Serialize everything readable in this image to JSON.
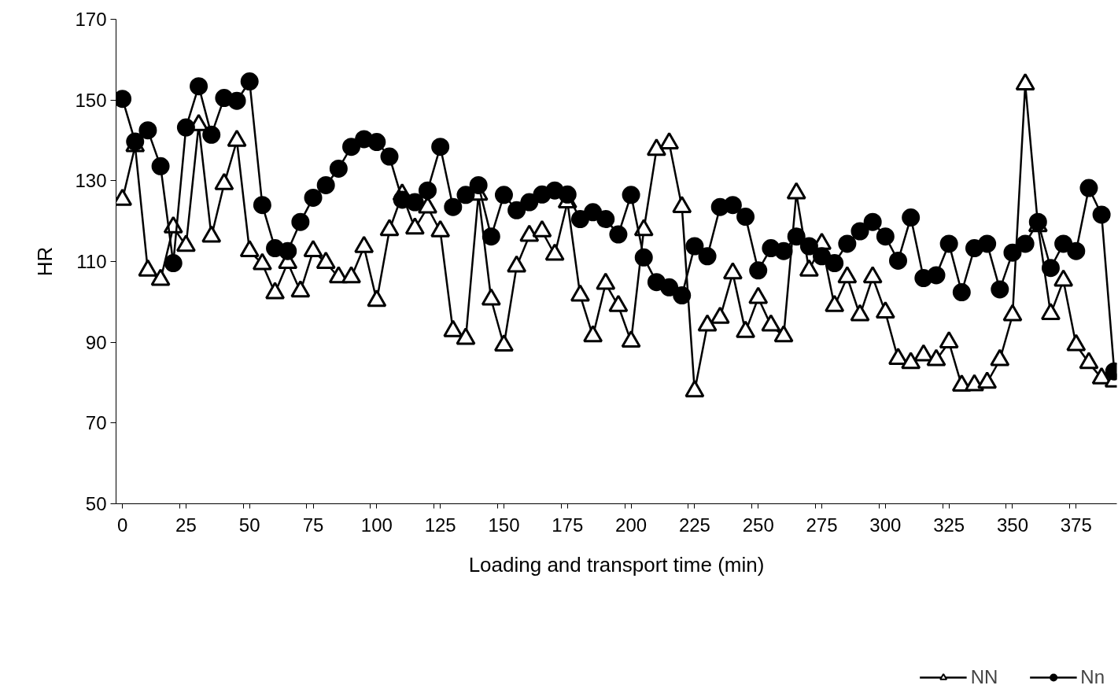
{
  "chart_data": {
    "type": "line",
    "xlabel": "Loading and transport time (min)",
    "ylabel": "HR",
    "x": [
      0,
      5,
      10,
      15,
      20,
      25,
      30,
      35,
      40,
      45,
      50,
      55,
      60,
      65,
      70,
      75,
      80,
      85,
      90,
      95,
      100,
      105,
      110,
      115,
      120,
      125,
      130,
      135,
      140,
      145,
      150,
      155,
      160,
      165,
      170,
      175,
      180,
      185,
      190,
      195,
      200,
      205,
      210,
      215,
      220,
      225,
      230,
      235,
      240,
      245,
      250,
      255,
      260,
      265,
      270,
      275,
      280,
      285,
      290,
      295,
      300,
      305,
      310,
      315,
      320,
      325,
      330,
      335,
      340,
      345,
      350,
      355,
      360,
      365,
      370,
      375,
      380,
      385,
      390
    ],
    "series": [
      {
        "name": "NN",
        "color": "#000000",
        "marker": "triangle",
        "values": [
          125.3,
          138.6,
          107.8,
          105.5,
          118.5,
          113.9,
          143.8,
          116.2,
          129.2,
          139.9,
          112.6,
          109.4,
          102.2,
          109.7,
          102.6,
          112.6,
          109.7,
          106.1,
          106.1,
          113.6,
          100.3,
          117.8,
          126.6,
          118.2,
          123.4,
          117.5,
          92.8,
          90.9,
          126.6,
          100.6,
          89.2,
          108.8,
          116.4,
          117.5,
          111.7,
          124.7,
          101.6,
          91.5,
          104.5,
          99.0,
          90.2,
          117.8,
          137.7,
          139.3,
          123.5,
          77.9,
          94.2,
          96.1,
          107.1,
          92.6,
          101.0,
          94.2,
          91.5,
          126.9,
          107.8,
          114.4,
          99.0,
          106.1,
          96.7,
          106.1,
          97.4,
          85.9,
          84.9,
          86.8,
          85.6,
          90.0,
          79.3,
          79.4,
          80.0,
          85.6,
          96.7,
          153.9,
          118.8,
          97.0,
          105.3,
          89.3,
          84.9,
          81.1,
          80.3
        ]
      },
      {
        "name": "Nn",
        "color": "#000000",
        "marker": "circle",
        "values": [
          150.3,
          139.7,
          142.5,
          133.6,
          109.6,
          143.2,
          153.4,
          141.4,
          150.5,
          149.8,
          154.6,
          124.0,
          113.3,
          112.6,
          119.8,
          125.8,
          128.9,
          133.0,
          138.4,
          140.3,
          139.6,
          136.0,
          125.3,
          124.7,
          127.6,
          138.4,
          123.5,
          126.5,
          128.9,
          116.2,
          126.5,
          122.7,
          124.7,
          126.6,
          127.6,
          126.6,
          120.5,
          122.2,
          120.5,
          116.7,
          126.5,
          111.0,
          104.9,
          103.6,
          101.6,
          113.8,
          111.3,
          123.5,
          124.0,
          121.1,
          107.8,
          113.3,
          112.6,
          116.2,
          113.8,
          111.3,
          109.6,
          114.4,
          117.5,
          119.8,
          116.2,
          110.2,
          120.9,
          105.9,
          106.6,
          114.4,
          102.4,
          113.3,
          114.4,
          103.1,
          112.2,
          114.4,
          119.8,
          108.4,
          114.4,
          112.6,
          128.2,
          121.6,
          82.8
        ]
      }
    ],
    "xlim": [
      -2.5,
      391
    ],
    "xticks": [
      0,
      25,
      50,
      75,
      100,
      125,
      150,
      175,
      200,
      225,
      250,
      275,
      300,
      325,
      350,
      375,
      {
        "value": 22.5,
        "label": null
      },
      {
        "value": 47.5,
        "label": null
      },
      {
        "value": 72.5,
        "label": null
      },
      {
        "value": 97.5,
        "label": null
      },
      {
        "value": 122.5,
        "label": null
      },
      {
        "value": 147.5,
        "label": null
      },
      {
        "value": 172.5,
        "label": null
      },
      {
        "value": 197.5,
        "label": null
      },
      {
        "value": 222.5,
        "label": null
      },
      {
        "value": 247.5,
        "label": null
      },
      {
        "value": 272.5,
        "label": null
      },
      {
        "value": 297.5,
        "label": null
      },
      {
        "value": 322.5,
        "label": null
      },
      {
        "value": 347.5,
        "label": null
      },
      {
        "value": 372.5,
        "label": null
      }
    ],
    "ylim": [
      50,
      170
    ],
    "yticks": [
      50,
      70,
      90,
      110,
      130,
      150,
      170
    ],
    "grid": false,
    "legend": "bottom right",
    "line_style": "solid"
  }
}
